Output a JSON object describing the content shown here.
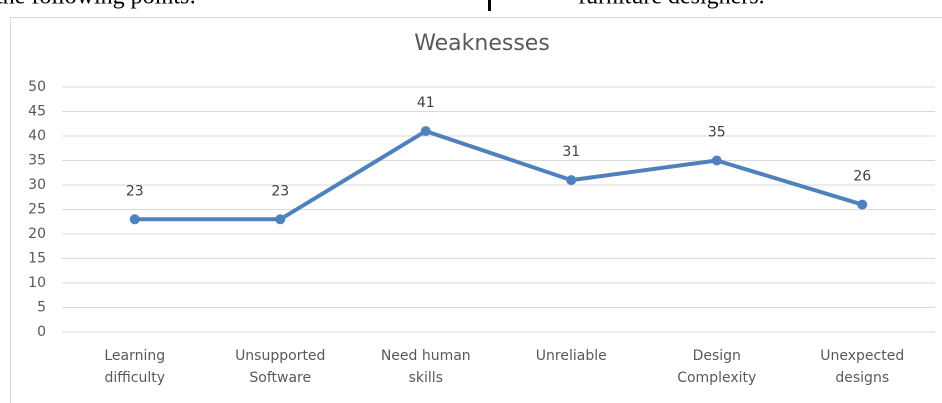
{
  "page_text": {
    "left_fragment": "the following points:",
    "right_fragment": "furniture designers."
  },
  "chart_data": {
    "type": "line",
    "title": "Weaknesses",
    "categories": [
      "Learning difficulty",
      "Unsupported Software",
      "Need human skills",
      "Unreliable",
      "Design Complexity",
      "Unexpected designs"
    ],
    "series": [
      {
        "name": "Weaknesses",
        "color": "#4f81bd",
        "values": [
          23,
          23,
          41,
          31,
          35,
          26
        ]
      }
    ],
    "ylim": [
      0,
      50
    ],
    "yticks": [
      0,
      5,
      10,
      15,
      20,
      25,
      30,
      35,
      40,
      45,
      50
    ],
    "grid": true
  }
}
